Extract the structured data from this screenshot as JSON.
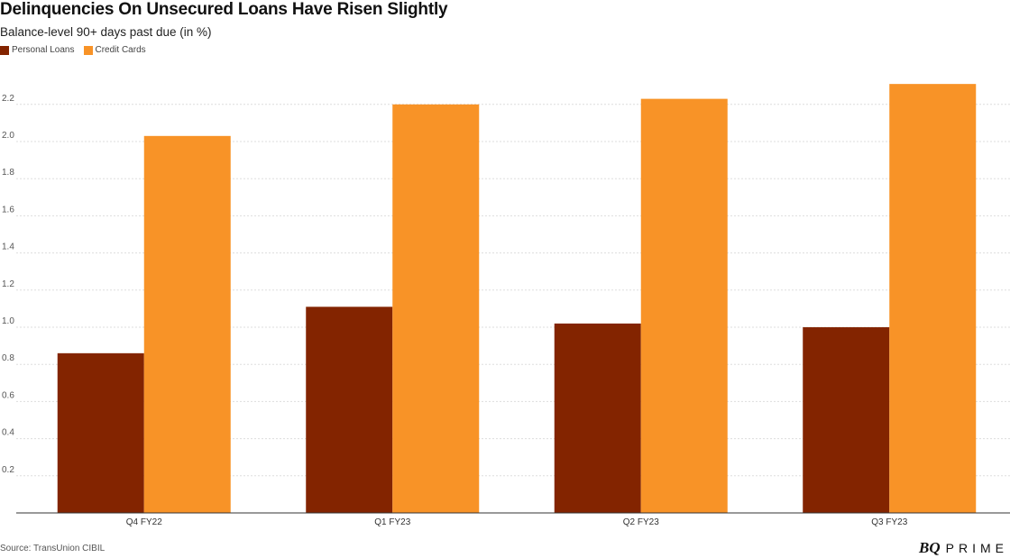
{
  "title": "Delinquencies On Unsecured Loans Have Risen Slightly",
  "subtitle": "Balance-level 90+ days past due (in %)",
  "source": "Source: TransUnion CIBIL",
  "brand": {
    "mark": "BQ",
    "word": "PRIME"
  },
  "chart_data": {
    "type": "bar",
    "title": "Delinquencies On Unsecured Loans Have Risen Slightly",
    "subtitle": "Balance-level 90+ days past due (in %)",
    "xlabel": "",
    "ylabel": "",
    "categories": [
      "Q4 FY22",
      "Q1 FY23",
      "Q2 FY23",
      "Q3 FY23"
    ],
    "series": [
      {
        "name": "Personal Loans",
        "color": "#832400",
        "values": [
          0.86,
          1.11,
          1.02,
          1.0
        ]
      },
      {
        "name": "Credit Cards",
        "color": "#F89327",
        "values": [
          2.03,
          2.2,
          2.23,
          2.31
        ]
      }
    ],
    "ylim": [
      0,
      2.4
    ],
    "yticks": [
      "0.2",
      "0.4",
      "0.6",
      "0.8",
      "1.0",
      "1.2",
      "1.4",
      "1.6",
      "1.8",
      "2.0",
      "2.2"
    ],
    "grid": true,
    "legend_position": "top-left"
  }
}
